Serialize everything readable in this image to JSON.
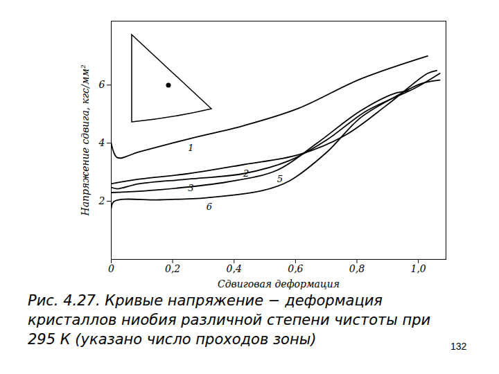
{
  "chart_data": {
    "type": "line",
    "x_label": "Сдвиговая деформация",
    "y_label": "Напряжение сдвига, кгс/мм²",
    "caption": "Рис. 4.27. Кривые напряжение − деформация кристаллов ниобия различной степени чистоты при 295 К (указано число проходов зоны)",
    "page_number": "132",
    "xlim": [
      0,
      1.09
    ],
    "ylim": [
      0,
      8.2
    ],
    "xticks": [
      {
        "value": 0,
        "label": "0"
      },
      {
        "value": 0.2,
        "label": "0,2"
      },
      {
        "value": 0.4,
        "label": "0,4"
      },
      {
        "value": 0.6,
        "label": "0,6"
      },
      {
        "value": 0.8,
        "label": "0,8"
      },
      {
        "value": 1.0,
        "label": "1,0"
      }
    ],
    "yticks": [
      2,
      4,
      6
    ],
    "grid": false,
    "series": [
      {
        "name": "1",
        "color": "#000000",
        "x": [
          0,
          0.02,
          0.09,
          0.25,
          0.43,
          0.61,
          0.81,
          1.03
        ],
        "values": [
          4.0,
          3.5,
          3.7,
          4.14,
          4.6,
          5.2,
          6.2,
          7.0
        ]
      },
      {
        "name": "2",
        "color": "#000000",
        "x": [
          0,
          0.09,
          0.25,
          0.43,
          0.61,
          0.76,
          0.9,
          1.03,
          1.06
        ],
        "values": [
          2.6,
          2.76,
          2.95,
          3.26,
          3.6,
          4.26,
          5.33,
          6.4,
          6.5
        ]
      },
      {
        "name": "3",
        "color": "#000000",
        "x": [
          0,
          0.02,
          0.09,
          0.25,
          0.43,
          0.58,
          0.7,
          0.83,
          0.99,
          1.07
        ],
        "values": [
          2.48,
          2.43,
          2.6,
          2.76,
          2.95,
          3.4,
          4.1,
          5.1,
          5.9,
          6.4
        ]
      },
      {
        "name": "5",
        "color": "#000000",
        "x": [
          0,
          0.16,
          0.38,
          0.54,
          0.67,
          0.81,
          0.92,
          0.97
        ],
        "values": [
          2.3,
          2.4,
          2.67,
          3.07,
          4.0,
          5.1,
          5.7,
          5.8
        ]
      },
      {
        "name": "6",
        "color": "#000000",
        "x": [
          0,
          0.01,
          0.16,
          0.31,
          0.49,
          0.58,
          0.7,
          0.81,
          0.92,
          1.01,
          1.07
        ],
        "values": [
          1.76,
          2.0,
          2.05,
          2.12,
          2.36,
          2.7,
          3.67,
          4.86,
          5.57,
          6.05,
          6.17
        ]
      }
    ]
  }
}
